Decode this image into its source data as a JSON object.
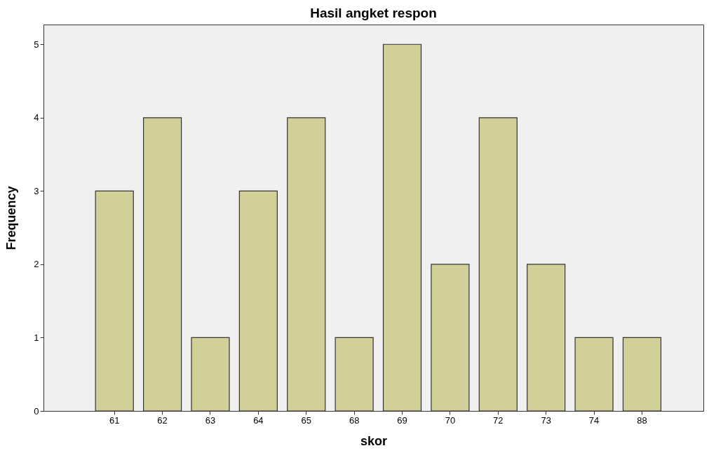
{
  "chart_data": {
    "type": "bar",
    "title": "Hasil angket respon",
    "xlabel": "skor",
    "ylabel": "Frequency",
    "categories": [
      "61",
      "62",
      "63",
      "64",
      "65",
      "68",
      "69",
      "70",
      "72",
      "73",
      "74",
      "88"
    ],
    "values": [
      3,
      4,
      1,
      3,
      4,
      1,
      5,
      2,
      4,
      2,
      1,
      1
    ],
    "color": "#d3cf98",
    "ylim": [
      0,
      5.27
    ],
    "yticks": [
      0,
      1,
      2,
      3,
      4,
      5
    ],
    "grid": false
  }
}
